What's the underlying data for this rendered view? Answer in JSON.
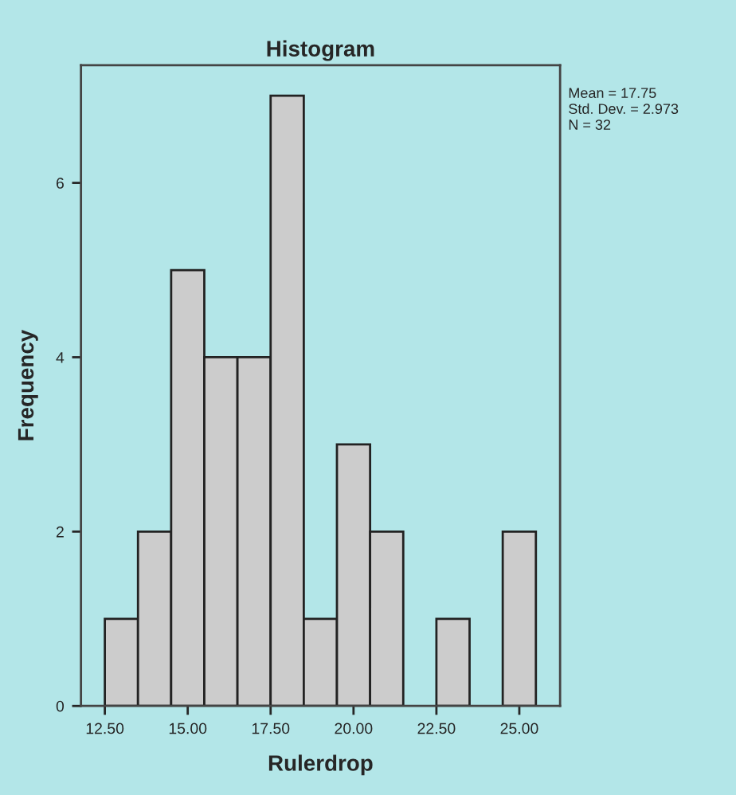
{
  "chart_data": {
    "type": "histogram",
    "title": "Histogram",
    "xlabel": "Rulerdrop",
    "ylabel": "Frequency",
    "bins": [
      12.5,
      13.5,
      14.5,
      15.5,
      16.5,
      17.5,
      18.5,
      19.5,
      20.5,
      21.5,
      22.5,
      23.5,
      24.5,
      25.5
    ],
    "values": [
      1,
      2,
      5,
      4,
      4,
      7,
      1,
      3,
      2,
      0,
      1,
      0,
      2
    ],
    "color": "#cccccc",
    "xlim": [
      11.78,
      26.23
    ],
    "xticks": [
      {
        "value": 12.5,
        "label": "12.50"
      },
      {
        "value": 15,
        "label": "15.00"
      },
      {
        "value": 17.5,
        "label": "17.50"
      },
      {
        "value": 20,
        "label": "20.00"
      },
      {
        "value": 22.5,
        "label": "22.50"
      },
      {
        "value": 25,
        "label": "25.00"
      }
    ],
    "ylim": [
      0,
      7.35
    ],
    "yticks": [
      0,
      2,
      4,
      6
    ],
    "grid": false,
    "annotations": [
      "Mean = 17.75",
      "Std. Dev. = 2.973",
      "N = 32"
    ]
  }
}
